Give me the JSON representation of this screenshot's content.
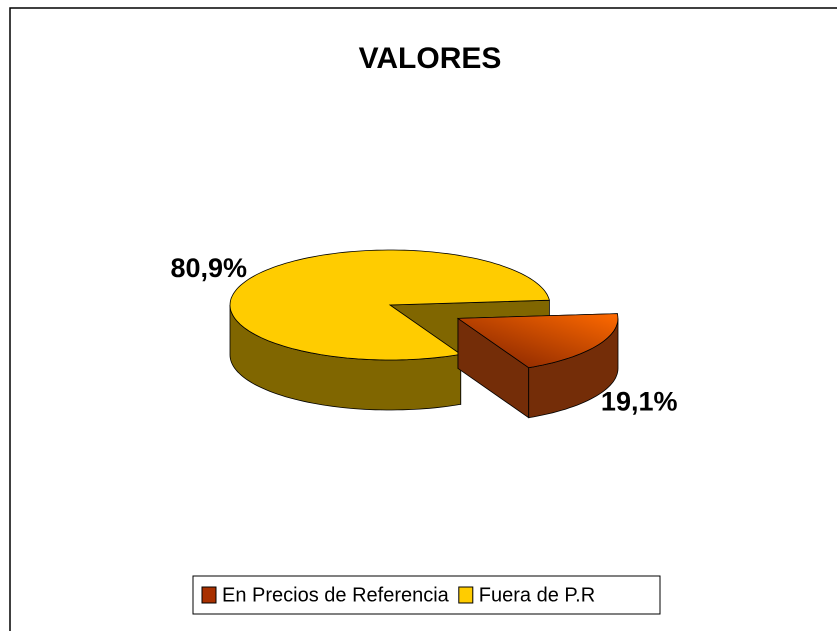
{
  "chart_data": {
    "type": "pie",
    "title": "VALORES",
    "categories": [
      "En Precios de Referencia",
      "Fuera de P.R"
    ],
    "values": [
      19.1,
      80.9
    ],
    "value_labels": [
      "19,1%",
      "80,9%"
    ],
    "colors": [
      "#e85a10",
      "#ffcc00"
    ]
  }
}
